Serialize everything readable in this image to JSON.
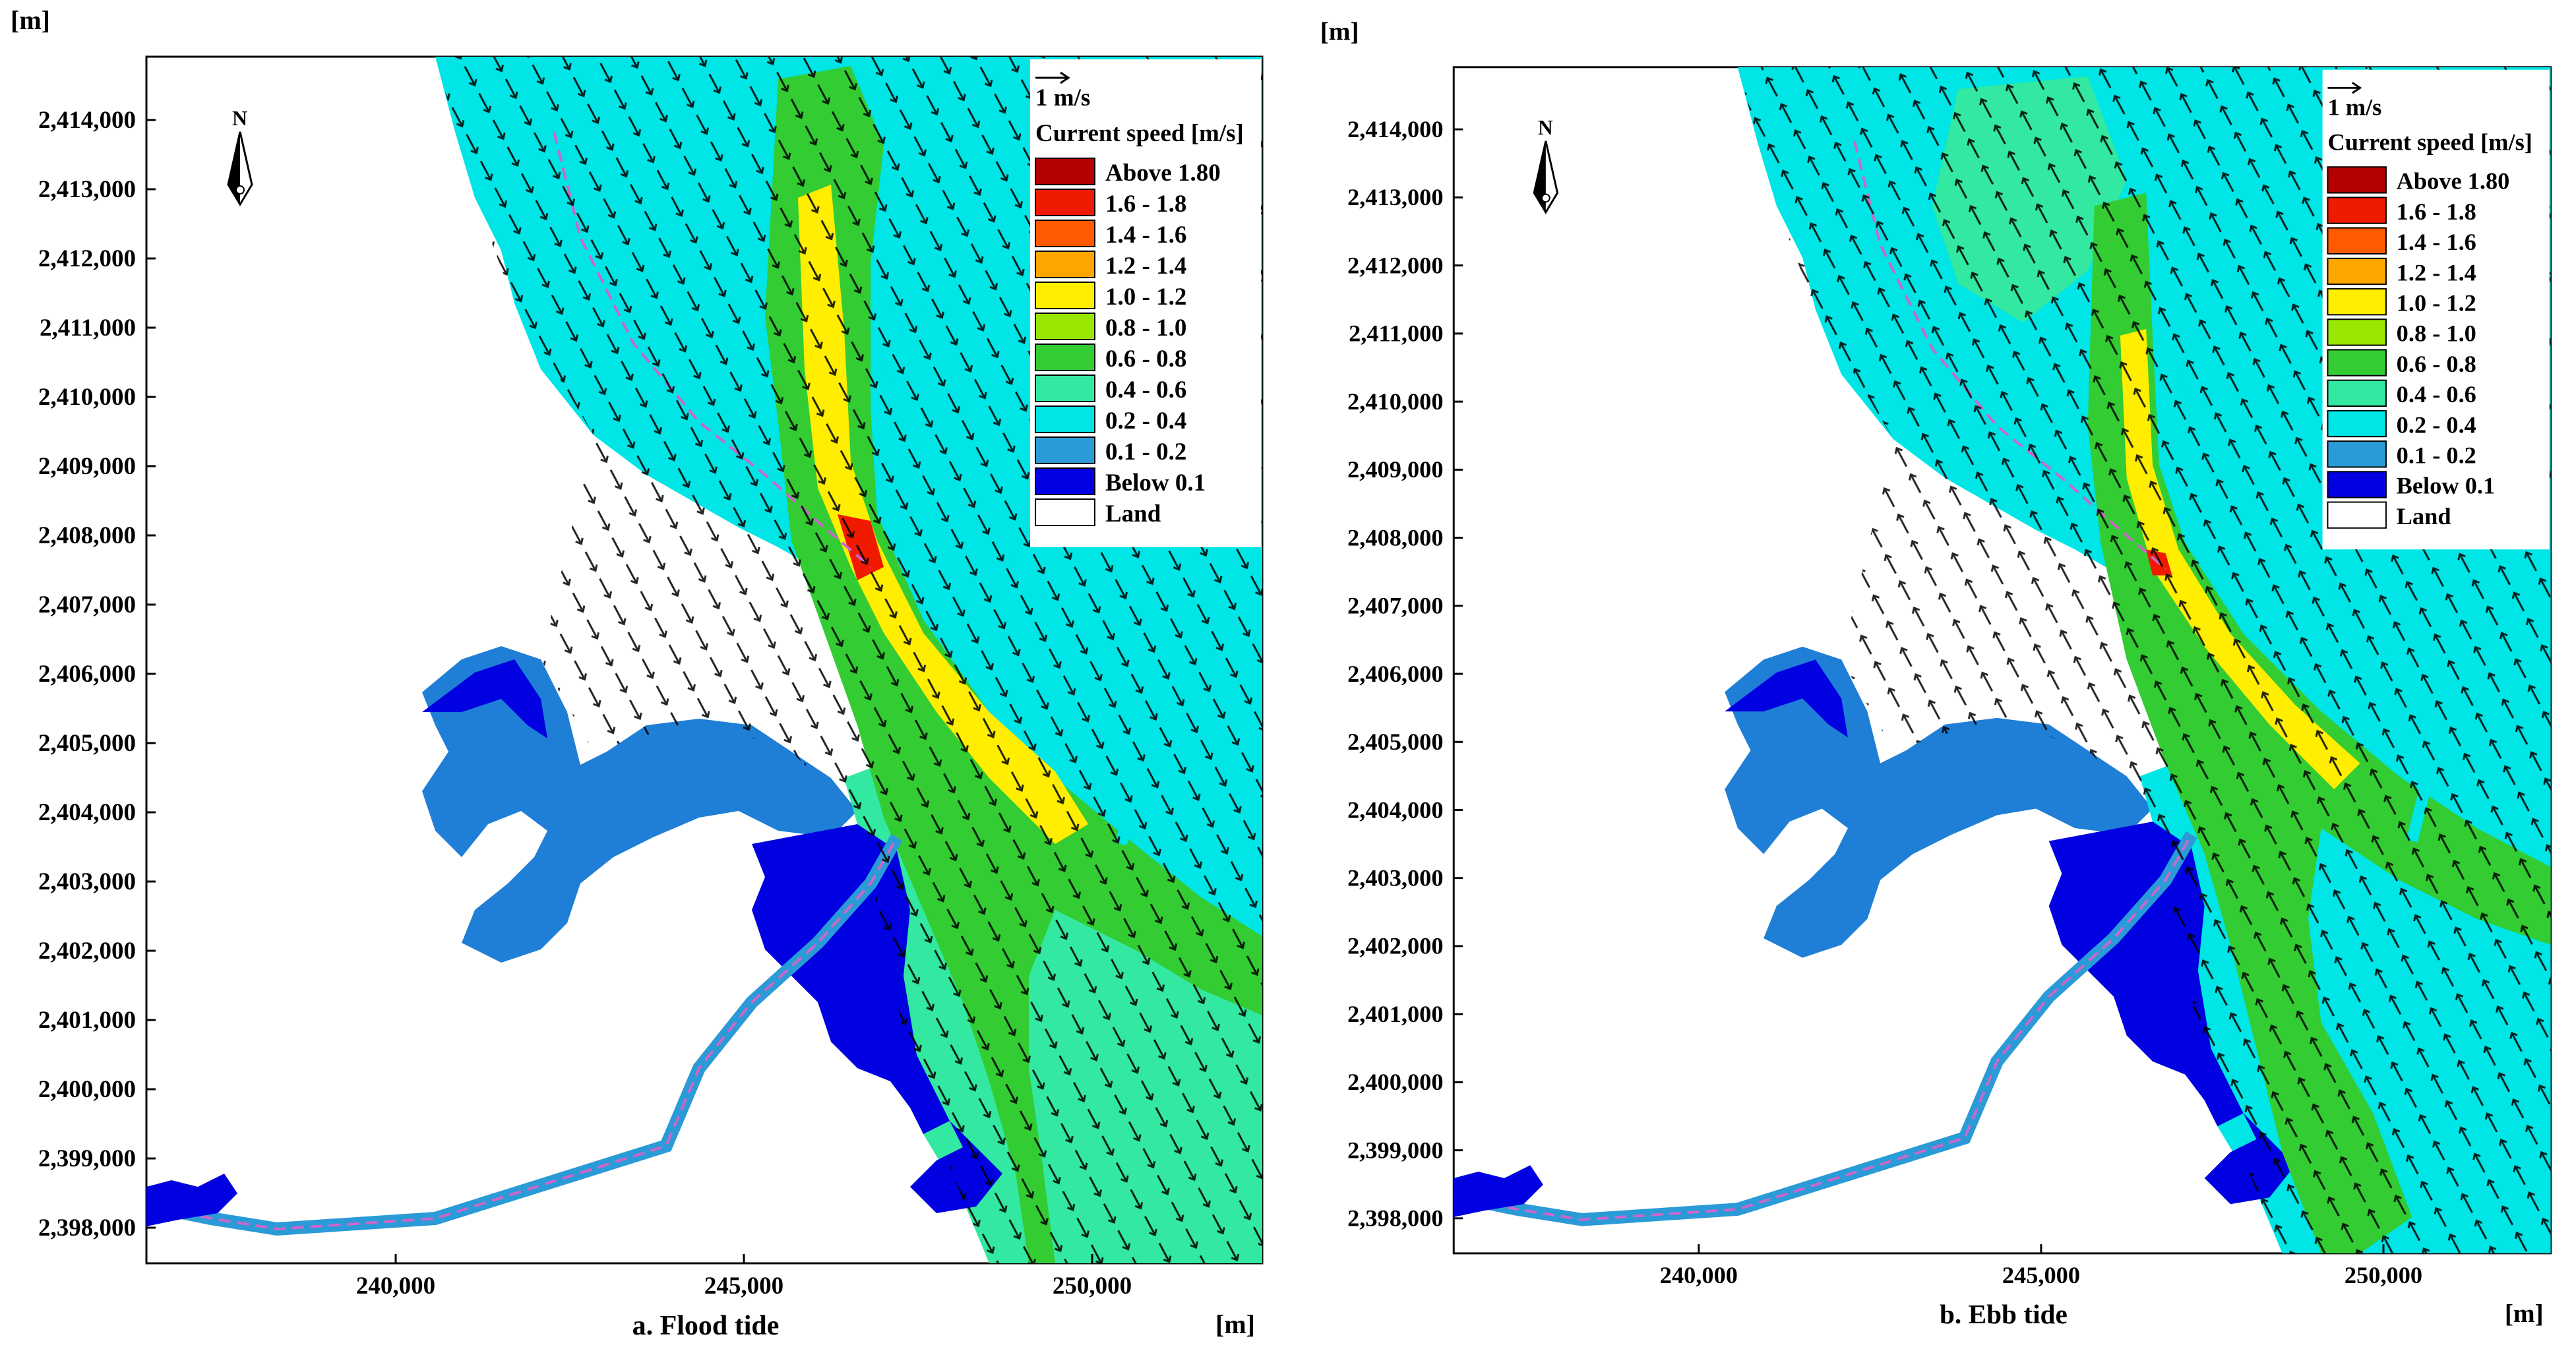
{
  "units": {
    "y_unit": "[m]",
    "x_unit": "[m]"
  },
  "y_ticks": [
    "2,414,000",
    "2,413,000",
    "2,412,000",
    "2,411,000",
    "2,410,000",
    "2,409,000",
    "2,408,000",
    "2,407,000",
    "2,406,000",
    "2,405,000",
    "2,404,000",
    "2,403,000",
    "2,402,000",
    "2,401,000",
    "2,400,000",
    "2,399,000",
    "2,398,000"
  ],
  "x_ticks": [
    "240,000",
    "245,000",
    "250,000"
  ],
  "north_label": "N",
  "scale_label": "1 m/s",
  "legend": {
    "title": "Current speed [m/s]",
    "items": [
      {
        "label": "Above 1.80",
        "color": "#b30000"
      },
      {
        "label": "1.6 - 1.8",
        "color": "#f01a00"
      },
      {
        "label": "1.4 - 1.6",
        "color": "#ff5a00"
      },
      {
        "label": "1.2 - 1.4",
        "color": "#ffa500"
      },
      {
        "label": "1.0 - 1.2",
        "color": "#ffee00"
      },
      {
        "label": "0.8 - 1.0",
        "color": "#99e600"
      },
      {
        "label": "0.6 - 0.8",
        "color": "#33cc33"
      },
      {
        "label": "0.4 - 0.6",
        "color": "#33e8a0"
      },
      {
        "label": "0.2 - 0.4",
        "color": "#00e5e5"
      },
      {
        "label": "0.1 - 0.2",
        "color": "#2a9bd6"
      },
      {
        "label": "Below 0.1",
        "color": "#0000e0"
      },
      {
        "label": "Land",
        "color": "#ffffff"
      }
    ]
  },
  "panels": [
    {
      "caption": "a. Flood tide"
    },
    {
      "caption": "b. Ebb tide"
    }
  ],
  "colors": {
    "frame": "#000000",
    "channel_marker": "#cc66cc"
  }
}
